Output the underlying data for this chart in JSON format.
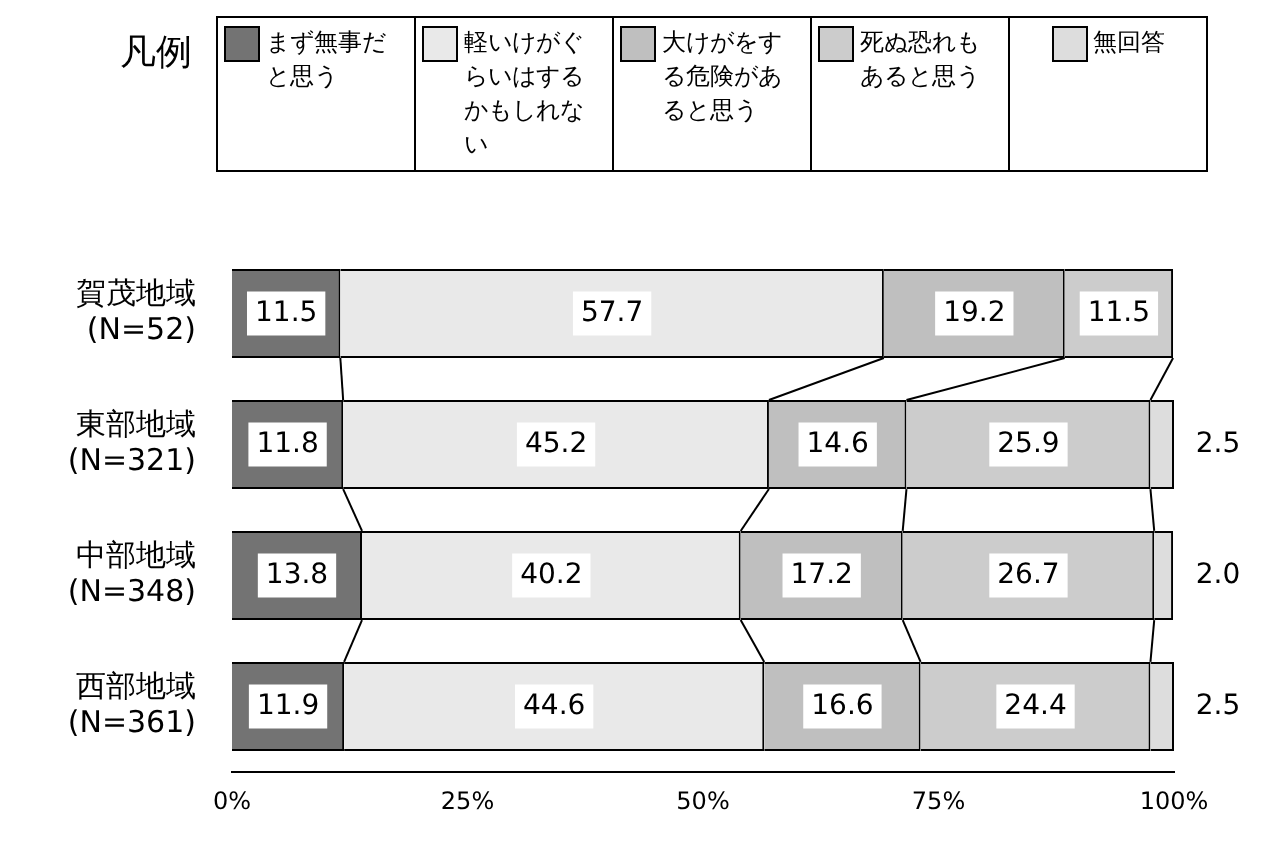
{
  "chart_data": {
    "type": "bar",
    "orientation": "horizontal",
    "stacked": true,
    "categories": [
      "賀茂地域\n(N=52)",
      "東部地域\n(N=321)",
      "中部地域\n(N=348)",
      "西部地域\n(N=361)"
    ],
    "series": [
      {
        "name": "まず無事だと思う",
        "color": "#737373",
        "values": [
          11.5,
          11.8,
          13.8,
          11.9
        ],
        "value_labels": [
          "11.5",
          "11.8",
          "13.8",
          "11.9"
        ]
      },
      {
        "name": "軽いけがぐらいはするかもしれない",
        "color": "#e9e9e9",
        "values": [
          57.7,
          45.2,
          40.2,
          44.6
        ],
        "value_labels": [
          "57.7",
          "45.2",
          "40.2",
          "44.6"
        ]
      },
      {
        "name": "大けがをする危険があると思う",
        "color": "#bfbfbf",
        "values": [
          19.2,
          14.6,
          17.2,
          16.6
        ],
        "value_labels": [
          "19.2",
          "14.6",
          "17.2",
          "16.6"
        ]
      },
      {
        "name": "死ぬ恐れもあると思う",
        "color": "#cccccc",
        "values": [
          11.5,
          25.9,
          26.7,
          24.4
        ],
        "value_labels": [
          "11.5",
          "25.9",
          "26.7",
          "24.4"
        ]
      },
      {
        "name": "無回答",
        "color": "#dddddd",
        "values": [
          null,
          2.5,
          2.0,
          2.5
        ],
        "value_labels": [
          null,
          "2.5",
          "2.0",
          "2.5"
        ]
      }
    ],
    "legend_title": "凡例",
    "legend": "top",
    "xlim": [
      0,
      100
    ],
    "xticks": [
      {
        "value": 0,
        "label": "0%"
      },
      {
        "value": 25,
        "label": "25%"
      },
      {
        "value": 50,
        "label": "50%"
      },
      {
        "value": 75,
        "label": "75%"
      },
      {
        "value": 100,
        "label": "100%"
      }
    ],
    "grid": false
  }
}
